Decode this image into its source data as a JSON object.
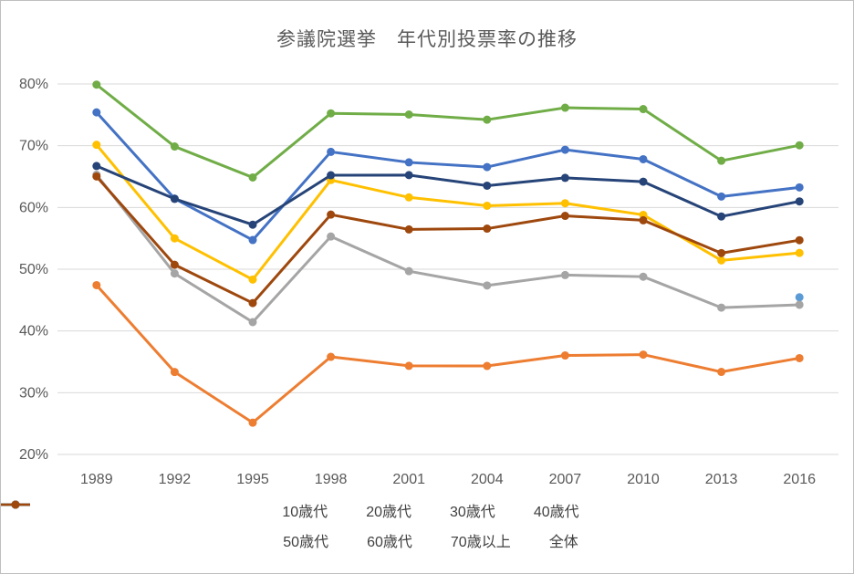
{
  "frame": {
    "background": "#FFFFFF",
    "border_color": "#BFBFBF"
  },
  "chart_data": {
    "type": "line",
    "title": "参議院選挙　年代別投票率の推移",
    "title_color": "#595959",
    "x_labels": [
      "1989",
      "1992",
      "1995",
      "1998",
      "2001",
      "2004",
      "2007",
      "2010",
      "2013",
      "2016"
    ],
    "ylim": [
      20,
      80
    ],
    "y_ticks": [
      20,
      30,
      40,
      50,
      60,
      70,
      80
    ],
    "y_tick_labels": [
      "20%",
      "30%",
      "40%",
      "50%",
      "60%",
      "70%",
      "80%"
    ],
    "grid": "horizontal",
    "gridline_color": "#D9D9D9",
    "axis_label_color": "#595959",
    "legend_position": "bottom",
    "legend_rows": [
      [
        "10歳代",
        "20歳代",
        "30歳代",
        "40歳代"
      ],
      [
        "50歳代",
        "60歳代",
        "70歳以上",
        "全体"
      ]
    ],
    "series": [
      {
        "name": "10歳代",
        "key": "age10s",
        "color": "#5B9BD5",
        "values": [
          null,
          null,
          null,
          null,
          null,
          null,
          null,
          null,
          null,
          45.45
        ]
      },
      {
        "name": "20歳代",
        "key": "age20s",
        "color": "#ED7D31",
        "values": [
          47.42,
          33.35,
          25.15,
          35.81,
          34.35,
          34.33,
          36.03,
          36.17,
          33.37,
          35.6
        ]
      },
      {
        "name": "30歳代",
        "key": "age30s",
        "color": "#A5A5A5",
        "values": [
          65.29,
          49.3,
          41.43,
          55.3,
          49.68,
          47.36,
          49.05,
          48.79,
          43.78,
          44.24
        ]
      },
      {
        "name": "40歳代",
        "key": "age40s",
        "color": "#FFC000",
        "values": [
          70.15,
          54.99,
          48.32,
          64.44,
          61.63,
          60.28,
          60.68,
          58.8,
          51.43,
          52.64
        ]
      },
      {
        "name": "50歳代",
        "key": "age50s",
        "color": "#4472C4",
        "values": [
          75.4,
          61.43,
          54.72,
          69.0,
          67.3,
          66.54,
          69.35,
          67.81,
          61.77,
          63.25
        ]
      },
      {
        "name": "60歳代",
        "key": "age60s",
        "color": "#70AD47",
        "values": [
          79.89,
          69.87,
          64.86,
          75.24,
          75.05,
          74.21,
          76.15,
          75.93,
          67.56,
          70.07
        ]
      },
      {
        "name": "70歳以上",
        "key": "age70plus",
        "color": "#264478",
        "values": [
          66.71,
          61.39,
          57.21,
          65.22,
          65.24,
          63.53,
          64.79,
          64.17,
          58.54,
          60.98
        ]
      },
      {
        "name": "全体",
        "key": "overall",
        "color": "#9E480E",
        "values": [
          65.02,
          50.72,
          44.52,
          58.84,
          56.44,
          56.57,
          58.64,
          57.92,
          52.61,
          54.7
        ]
      }
    ]
  }
}
